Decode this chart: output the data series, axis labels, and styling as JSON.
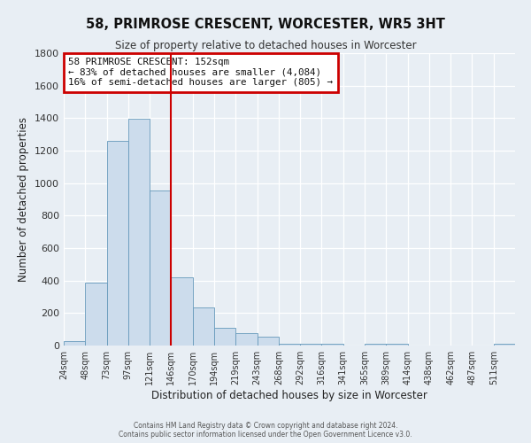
{
  "title": "58, PRIMROSE CRESCENT, WORCESTER, WR5 3HT",
  "subtitle": "Size of property relative to detached houses in Worcester",
  "xlabel": "Distribution of detached houses by size in Worcester",
  "ylabel": "Number of detached properties",
  "bin_labels": [
    "24sqm",
    "48sqm",
    "73sqm",
    "97sqm",
    "121sqm",
    "146sqm",
    "170sqm",
    "194sqm",
    "219sqm",
    "243sqm",
    "268sqm",
    "292sqm",
    "316sqm",
    "341sqm",
    "365sqm",
    "389sqm",
    "414sqm",
    "438sqm",
    "462sqm",
    "487sqm",
    "511sqm"
  ],
  "bin_values": [
    25,
    390,
    1260,
    1395,
    955,
    420,
    235,
    110,
    75,
    55,
    12,
    12,
    12,
    0,
    12,
    12,
    0,
    0,
    0,
    0,
    12
  ],
  "bar_color": "#ccdcec",
  "bar_edge_color": "#6699bb",
  "vline_x": 5,
  "vline_color": "#cc0000",
  "ylim": [
    0,
    1800
  ],
  "yticks": [
    0,
    200,
    400,
    600,
    800,
    1000,
    1200,
    1400,
    1600,
    1800
  ],
  "annotation_title": "58 PRIMROSE CRESCENT: 152sqm",
  "annotation_line1": "← 83% of detached houses are smaller (4,084)",
  "annotation_line2": "16% of semi-detached houses are larger (805) →",
  "annotation_box_color": "#cc0000",
  "footer_line1": "Contains HM Land Registry data © Crown copyright and database right 2024.",
  "footer_line2": "Contains public sector information licensed under the Open Government Licence v3.0.",
  "background_color": "#e8eef4",
  "grid_color": "#ffffff"
}
